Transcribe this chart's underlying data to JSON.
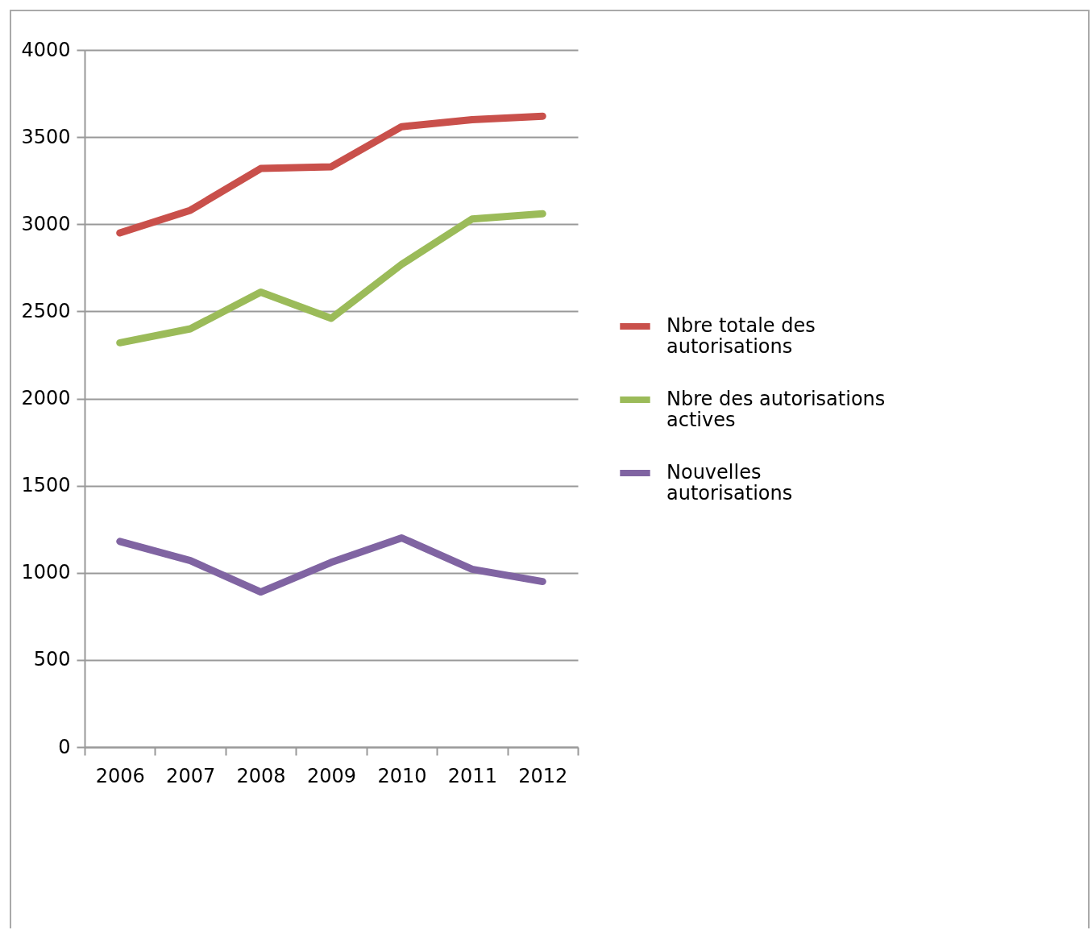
{
  "chart_data": {
    "type": "line",
    "categories": [
      "2006",
      "2007",
      "2008",
      "2009",
      "2010",
      "2011",
      "2012"
    ],
    "series": [
      {
        "name": "Nbre totale des autorisations",
        "color": "#c9504b",
        "values": [
          2950,
          3080,
          3320,
          3330,
          3560,
          3600,
          3620
        ]
      },
      {
        "name": "Nbre des autorisations actives",
        "color": "#9bbb59",
        "values": [
          2320,
          2400,
          2610,
          2460,
          2770,
          3030,
          3060
        ]
      },
      {
        "name": "Nouvelles autorisations",
        "color": "#8064a2",
        "values": [
          1180,
          1070,
          890,
          1060,
          1200,
          1020,
          950
        ]
      }
    ],
    "ylim": [
      0,
      4000
    ],
    "yticks": [
      0,
      500,
      1000,
      1500,
      2000,
      2500,
      3000,
      3500,
      4000
    ],
    "grid": "y",
    "legend": "right",
    "line_style": "solid",
    "marker": "none"
  }
}
